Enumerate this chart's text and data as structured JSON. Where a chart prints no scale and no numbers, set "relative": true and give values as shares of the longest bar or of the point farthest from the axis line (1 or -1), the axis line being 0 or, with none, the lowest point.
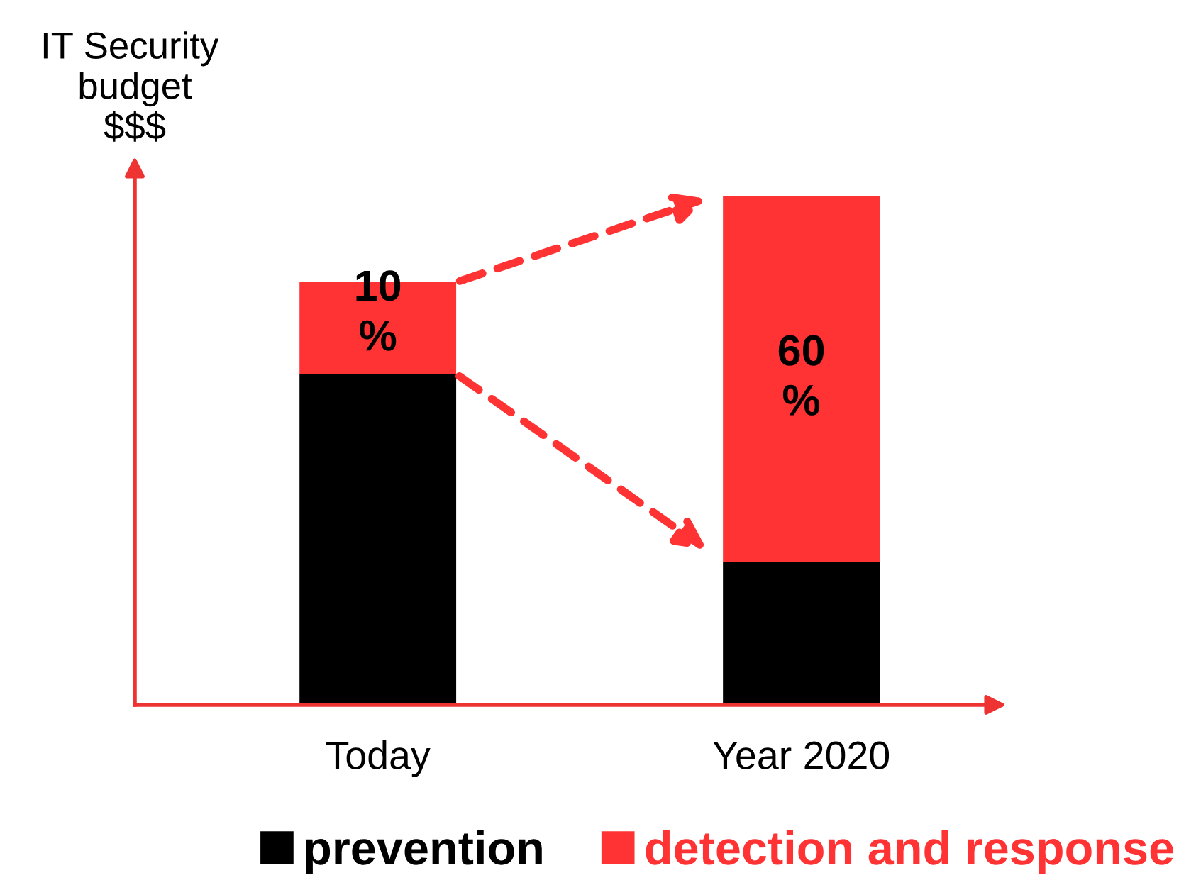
{
  "chart_data": {
    "type": "bar",
    "stacked": true,
    "relative": true,
    "ylabel": "IT Security budget $$$",
    "categories": [
      "Today",
      "Year 2020"
    ],
    "series": [
      {
        "name": "prevention",
        "color": "#000000",
        "values": [
          0.65,
          0.28
        ]
      },
      {
        "name": "detection and response",
        "color": "#ff3333",
        "values": [
          0.18,
          0.72
        ]
      }
    ],
    "annotations": [
      "10 %",
      "60 %"
    ],
    "legend": "bottom",
    "grid": false
  }
}
